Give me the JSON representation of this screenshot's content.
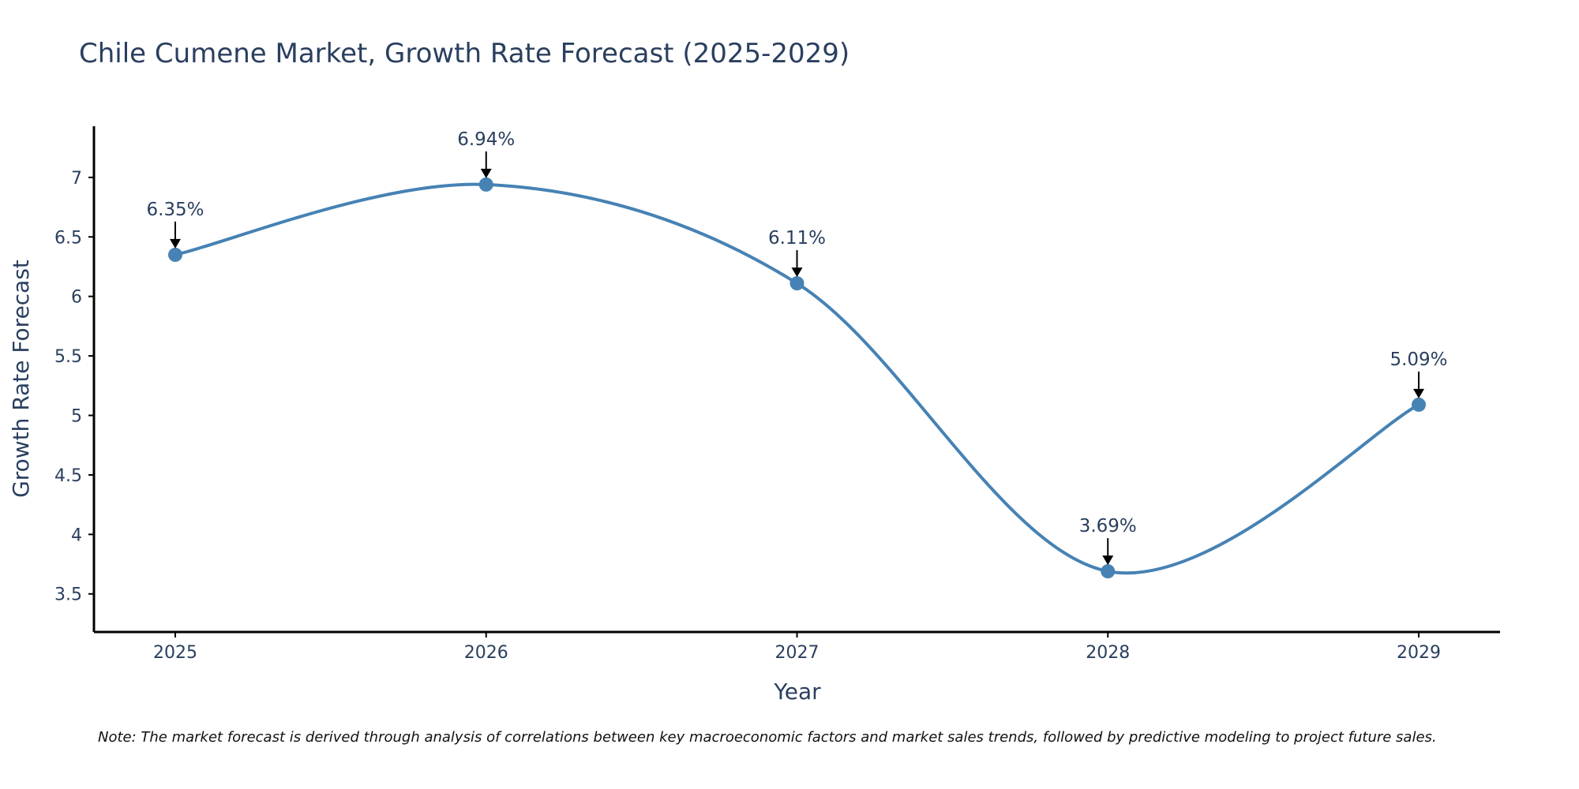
{
  "chart_data": {
    "type": "line",
    "title": "Chile Cumene Market, Growth Rate Forecast (2025-2029)",
    "xlabel": "Year",
    "ylabel": "Growth Rate Forecast",
    "categories": [
      "2025",
      "2026",
      "2027",
      "2028",
      "2029"
    ],
    "series": [
      {
        "name": "Growth Rate Forecast",
        "values": [
          6.35,
          6.94,
          6.11,
          3.69,
          5.09
        ],
        "data_labels": [
          "6.35%",
          "6.94%",
          "6.11%",
          "3.69%",
          "5.09%"
        ]
      }
    ],
    "y_ticks": [
      3.5,
      4,
      4.5,
      5,
      5.5,
      6,
      6.5,
      7
    ],
    "y_tick_labels": [
      "3.5",
      "4",
      "4.5",
      "5",
      "5.5",
      "6",
      "6.5",
      "7"
    ],
    "ylim": [
      3.18,
      7.43
    ],
    "grid": false,
    "legend": "none",
    "line_shape": "spline",
    "colors": {
      "line": "#4682b4",
      "marker": "#4682b4",
      "arrow": "#000000",
      "axis": "#000000",
      "text": "#2a3f5f"
    },
    "note": "Note: The market forecast is derived through analysis of correlations between key macroeconomic factors and market sales trends, followed by predictive modeling to project future sales."
  }
}
